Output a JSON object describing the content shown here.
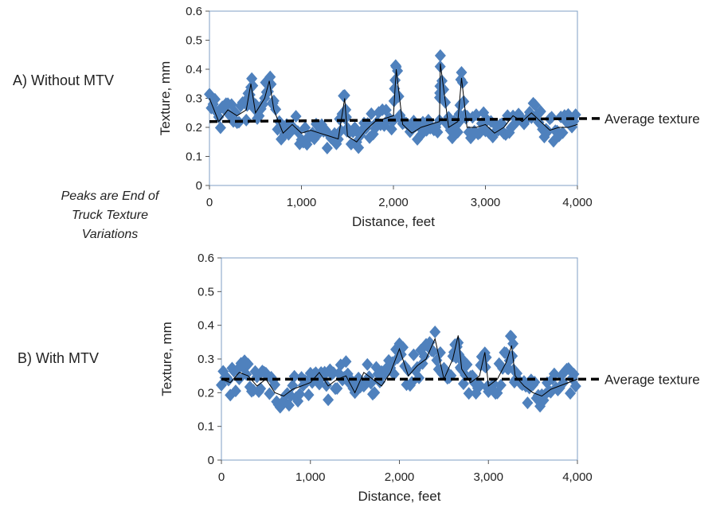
{
  "annotations": {
    "left_labels": [
      "A) Without MTV",
      "B) With MTV"
    ],
    "note_lines": [
      "Peaks are End of",
      "Truck Texture",
      "Variations"
    ]
  },
  "colors": {
    "marker": "#4f81bd",
    "line": "#000000",
    "average": "#000000",
    "frame": "#7f9fc4"
  },
  "chart_data": [
    {
      "type": "scatter",
      "title": "",
      "panel_label": "A) Without MTV",
      "xlabel": "Distance, feet",
      "ylabel": "Texture, mm",
      "xlim": [
        0,
        4000
      ],
      "ylim": [
        0,
        0.6
      ],
      "xticks": [
        0,
        1000,
        2000,
        3000,
        4000
      ],
      "xtick_labels": [
        "0",
        "1,000",
        "2,000",
        "3,000",
        "4,000"
      ],
      "yticks": [
        0,
        0.1,
        0.2,
        0.3,
        0.4,
        0.5,
        0.6
      ],
      "ytick_labels": [
        "0",
        "0.1",
        "0.2",
        "0.3",
        "0.4",
        "0.5",
        "0.6"
      ],
      "grid": false,
      "marker": "diamond",
      "average_line": {
        "label": "Average texture",
        "y": [
          0.22,
          0.23
        ]
      },
      "series": [
        {
          "x": [
            0,
            100,
            200,
            300,
            400,
            450,
            500,
            600,
            650,
            700,
            800,
            900,
            1000,
            1100,
            1200,
            1300,
            1400,
            1470,
            1500,
            1600,
            1700,
            1800,
            1900,
            2000,
            2030,
            2100,
            2200,
            2300,
            2400,
            2500,
            2510,
            2600,
            2700,
            2740,
            2800,
            2900,
            3000,
            3100,
            3200,
            3300,
            3400,
            3500,
            3600,
            3700,
            3800,
            3900,
            4000
          ],
          "y": [
            0.3,
            0.22,
            0.26,
            0.24,
            0.26,
            0.35,
            0.25,
            0.3,
            0.36,
            0.26,
            0.18,
            0.21,
            0.18,
            0.19,
            0.18,
            0.17,
            0.16,
            0.3,
            0.17,
            0.15,
            0.19,
            0.22,
            0.23,
            0.24,
            0.4,
            0.21,
            0.18,
            0.2,
            0.21,
            0.22,
            0.42,
            0.2,
            0.22,
            0.37,
            0.2,
            0.2,
            0.21,
            0.18,
            0.2,
            0.24,
            0.22,
            0.25,
            0.22,
            0.19,
            0.2,
            0.2,
            0.21
          ]
        }
      ]
    },
    {
      "type": "scatter",
      "title": "",
      "panel_label": "B) With MTV",
      "xlabel": "Distance, feet",
      "ylabel": "Texture, mm",
      "xlim": [
        0,
        4000
      ],
      "ylim": [
        0,
        0.6
      ],
      "xticks": [
        0,
        1000,
        2000,
        3000,
        4000
      ],
      "xtick_labels": [
        "0",
        "1,000",
        "2,000",
        "3,000",
        "4,000"
      ],
      "yticks": [
        0,
        0.1,
        0.2,
        0.3,
        0.4,
        0.5,
        0.6
      ],
      "ytick_labels": [
        "0",
        "0.1",
        "0.2",
        "0.3",
        "0.4",
        "0.5",
        "0.6"
      ],
      "grid": false,
      "marker": "diamond",
      "average_line": {
        "label": "Average texture",
        "y": [
          0.24,
          0.24
        ]
      },
      "series": [
        {
          "x": [
            0,
            100,
            200,
            300,
            400,
            500,
            600,
            700,
            800,
            900,
            1000,
            1100,
            1200,
            1300,
            1400,
            1500,
            1600,
            1700,
            1800,
            1900,
            2000,
            2100,
            2200,
            2300,
            2400,
            2500,
            2600,
            2660,
            2700,
            2800,
            2900,
            2960,
            3000,
            3100,
            3200,
            3260,
            3300,
            3400,
            3500,
            3600,
            3700,
            3800,
            3900,
            4000
          ],
          "y": [
            0.24,
            0.23,
            0.26,
            0.25,
            0.22,
            0.24,
            0.2,
            0.19,
            0.21,
            0.22,
            0.23,
            0.26,
            0.22,
            0.24,
            0.25,
            0.2,
            0.26,
            0.24,
            0.22,
            0.26,
            0.33,
            0.25,
            0.28,
            0.3,
            0.36,
            0.24,
            0.3,
            0.37,
            0.27,
            0.23,
            0.25,
            0.32,
            0.22,
            0.24,
            0.29,
            0.34,
            0.25,
            0.22,
            0.2,
            0.19,
            0.21,
            0.22,
            0.23,
            0.24
          ]
        }
      ]
    }
  ]
}
